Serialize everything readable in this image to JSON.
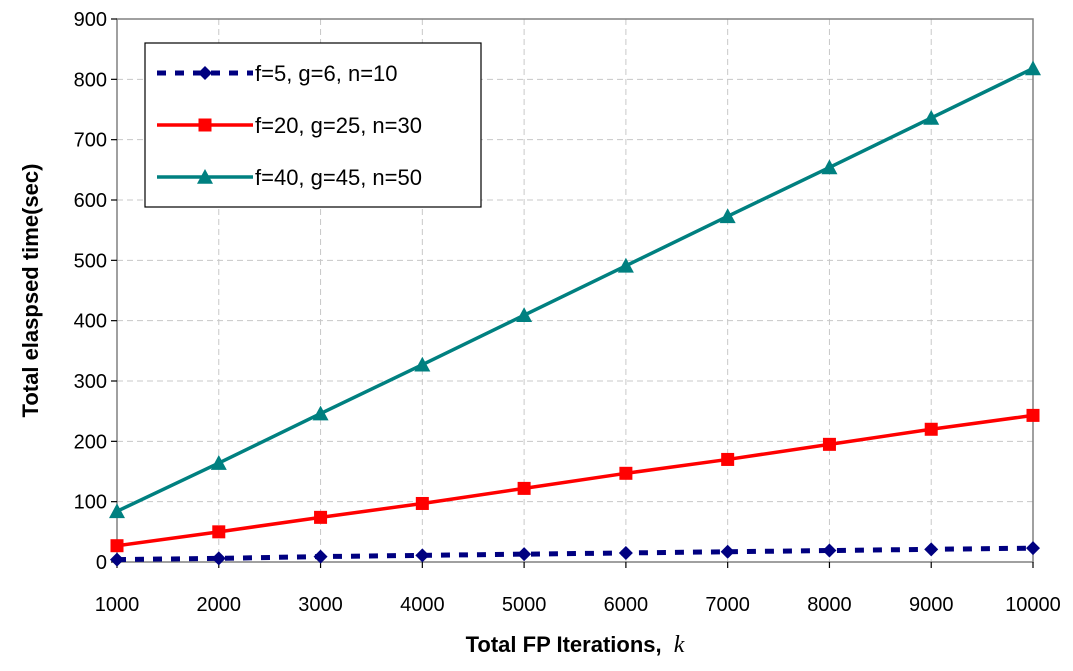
{
  "chart_data": {
    "type": "line",
    "xlabel_main": "Total FP Iterations,",
    "xlabel_var": "k",
    "ylabel": "Total elaspsed time(sec)",
    "ylim": [
      0,
      900
    ],
    "y_ticks": [
      0,
      100,
      200,
      300,
      400,
      500,
      600,
      700,
      800,
      900
    ],
    "x": [
      1000,
      2000,
      3000,
      4000,
      5000,
      6000,
      7000,
      8000,
      9000,
      10000
    ],
    "grid": true,
    "legend_position": "top-left",
    "series": [
      {
        "name": "f=5, g=6, n=10",
        "color": "#000080",
        "line_style": "dotted",
        "marker": "diamond",
        "values": [
          4,
          6,
          9,
          11,
          13,
          15,
          17,
          19,
          21,
          23
        ]
      },
      {
        "name": "f=20, g=25, n=30",
        "color": "#ff0000",
        "line_style": "solid",
        "marker": "square",
        "values": [
          27,
          50,
          74,
          97,
          122,
          147,
          170,
          195,
          220,
          243
        ]
      },
      {
        "name": "f=40, g=45, n=50",
        "color": "#008080",
        "line_style": "solid",
        "marker": "triangle",
        "values": [
          84,
          164,
          246,
          327,
          409,
          491,
          573,
          654,
          736,
          818
        ]
      }
    ]
  }
}
